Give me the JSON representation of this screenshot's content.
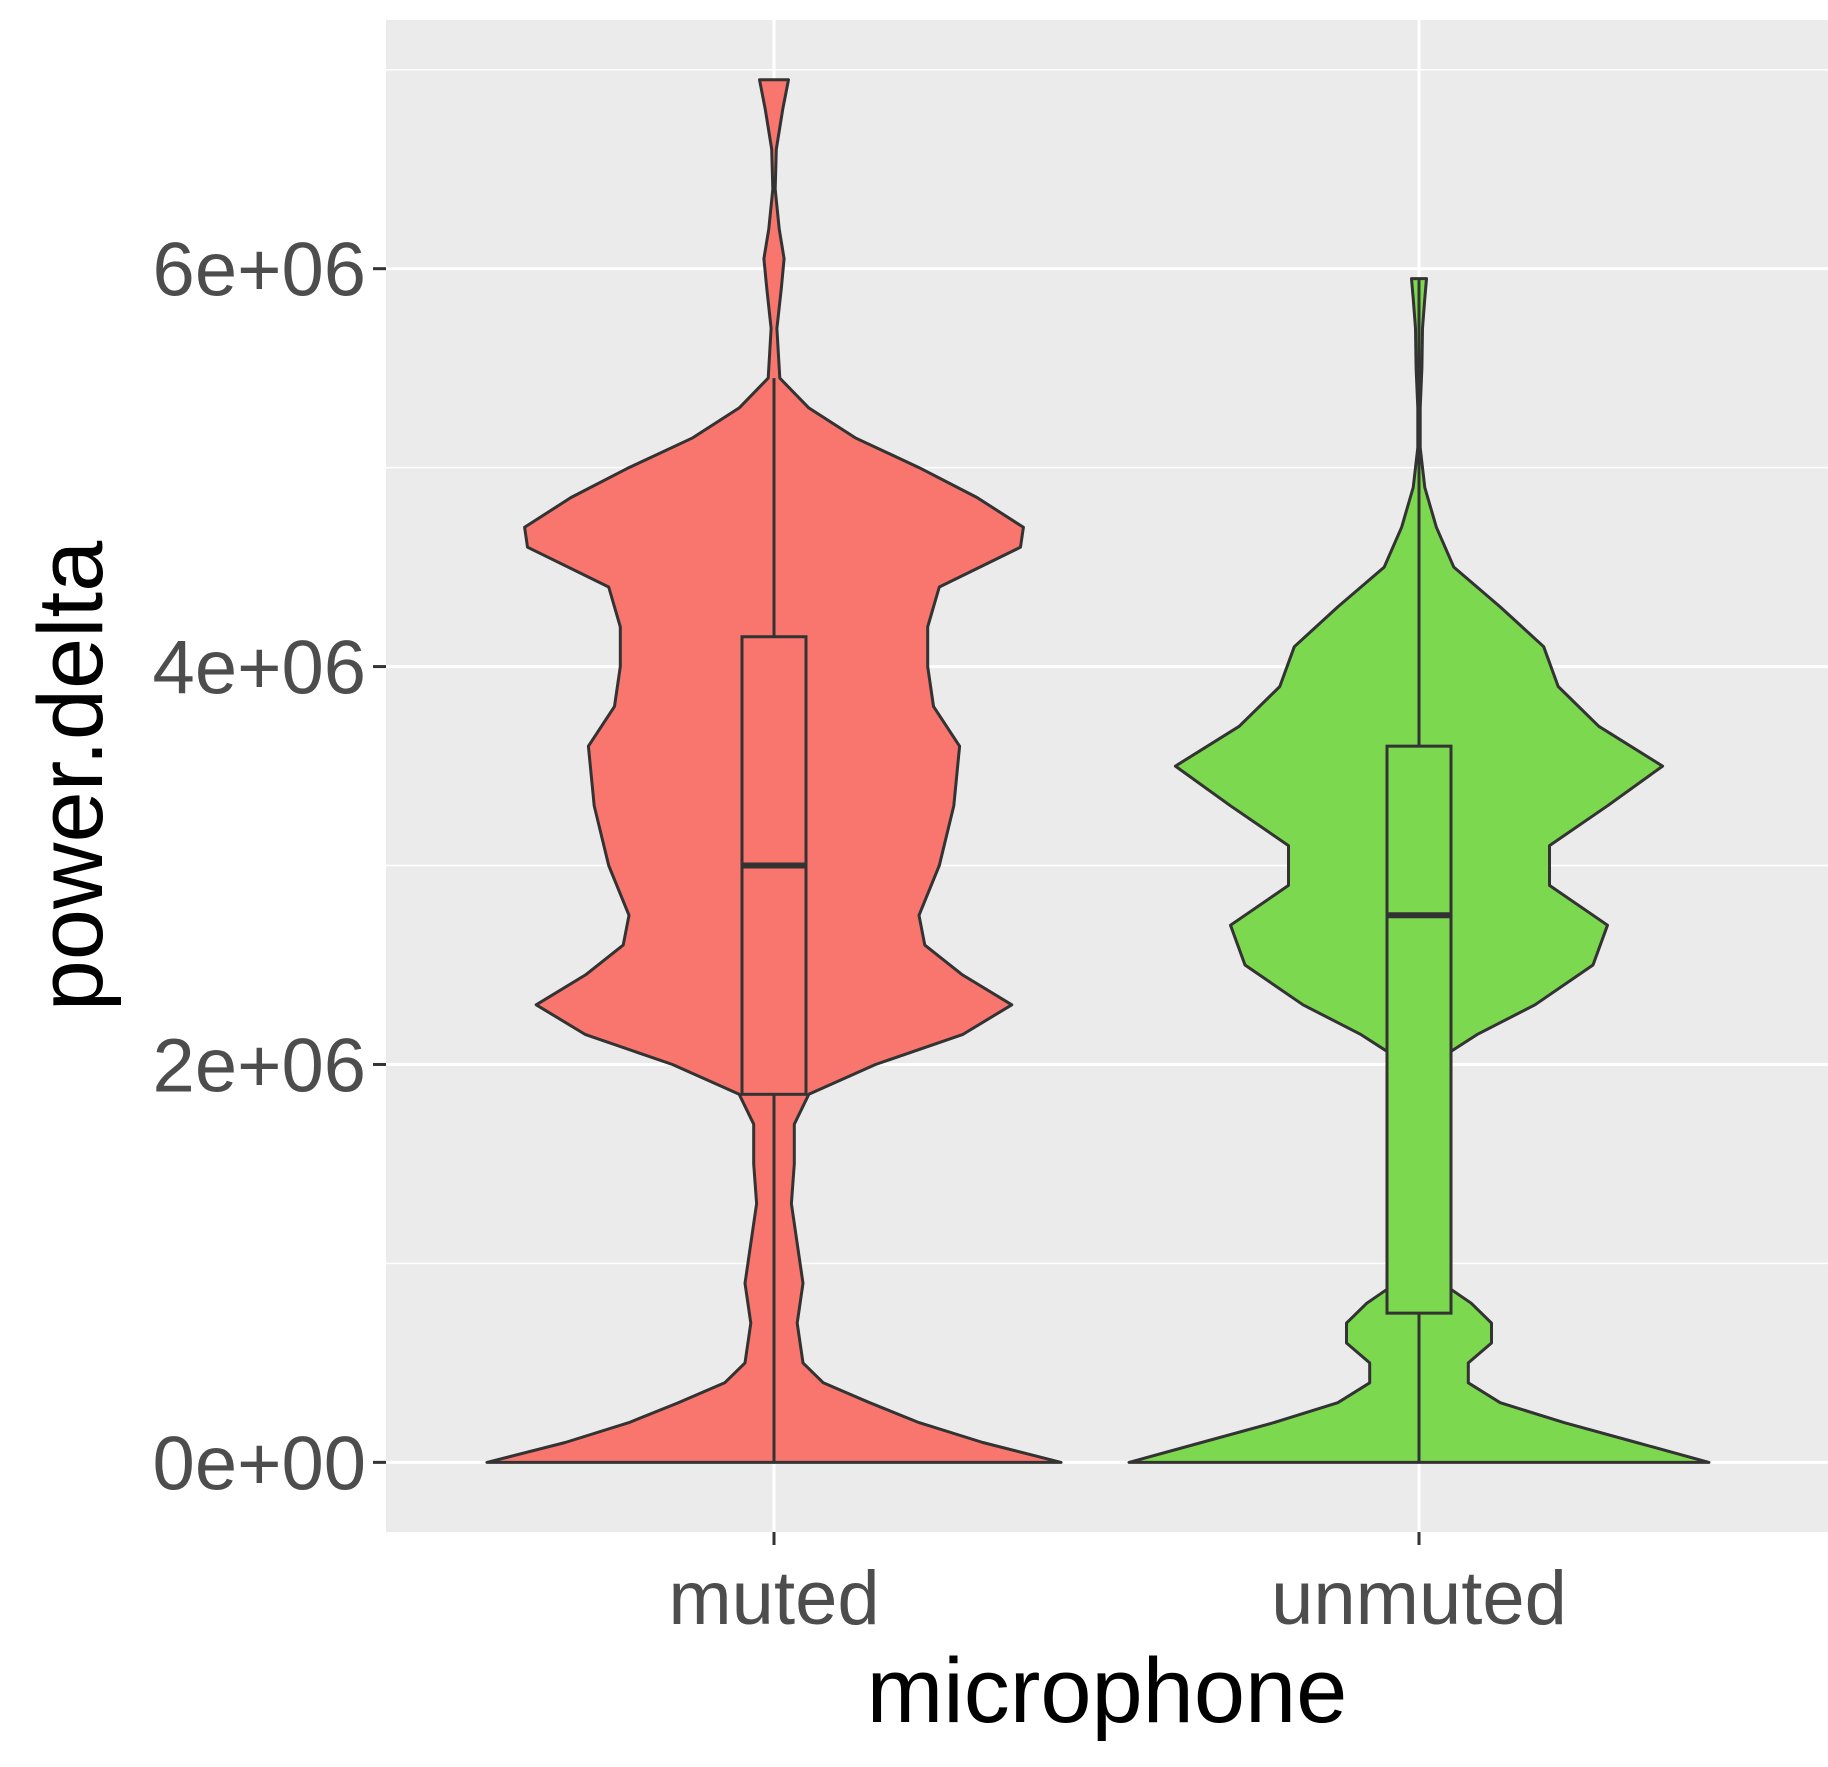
{
  "chart_data": {
    "type": "violin",
    "xlabel": "microphone",
    "ylabel": "power.delta",
    "categories": [
      "muted",
      "unmuted"
    ],
    "ylim": [
      -350000,
      7250000
    ],
    "y_ticks": [
      {
        "value": 0,
        "label": "0e+00"
      },
      {
        "value": 2000000,
        "label": "2e+06"
      },
      {
        "value": 4000000,
        "label": "4e+06"
      },
      {
        "value": 6000000,
        "label": "6e+06"
      }
    ],
    "y_minor_ticks": [
      1000000,
      3000000,
      5000000,
      7000000
    ],
    "grid": true,
    "background": "#ebebeb",
    "series": [
      {
        "name": "muted",
        "color": "#f8766d",
        "box": {
          "min": 0,
          "q1": 1850000,
          "median": 3000000,
          "q3": 4150000,
          "max": 5450000
        },
        "violin": {
          "y_min": 0,
          "y_max": 6950000,
          "density": [
            [
              0,
              0.99
            ],
            [
              100000,
              0.72
            ],
            [
              200000,
              0.5
            ],
            [
              300000,
              0.33
            ],
            [
              400000,
              0.17
            ],
            [
              500000,
              0.1
            ],
            [
              700000,
              0.08
            ],
            [
              900000,
              0.1
            ],
            [
              1100000,
              0.08
            ],
            [
              1300000,
              0.06
            ],
            [
              1500000,
              0.07
            ],
            [
              1700000,
              0.07
            ],
            [
              1850000,
              0.12
            ],
            [
              2000000,
              0.35
            ],
            [
              2150000,
              0.65
            ],
            [
              2300000,
              0.82
            ],
            [
              2450000,
              0.65
            ],
            [
              2600000,
              0.52
            ],
            [
              2750000,
              0.5
            ],
            [
              3000000,
              0.57
            ],
            [
              3300000,
              0.62
            ],
            [
              3600000,
              0.64
            ],
            [
              3800000,
              0.55
            ],
            [
              4000000,
              0.53
            ],
            [
              4200000,
              0.53
            ],
            [
              4400000,
              0.57
            ],
            [
              4600000,
              0.85
            ],
            [
              4700000,
              0.86
            ],
            [
              4850000,
              0.7
            ],
            [
              5000000,
              0.5
            ],
            [
              5150000,
              0.28
            ],
            [
              5300000,
              0.12
            ],
            [
              5450000,
              0.02
            ],
            [
              5700000,
              0.01
            ],
            [
              5900000,
              0.025
            ],
            [
              6050000,
              0.035
            ],
            [
              6200000,
              0.018
            ],
            [
              6400000,
              0.004
            ],
            [
              6600000,
              0.008
            ],
            [
              6800000,
              0.03
            ],
            [
              6950000,
              0.05
            ]
          ]
        }
      },
      {
        "name": "unmuted",
        "color": "#7cd84e",
        "box": {
          "min": 0,
          "q1": 750000,
          "median": 2750000,
          "q3": 3600000,
          "max": 5950000
        },
        "violin": {
          "y_min": 0,
          "y_max": 5950000,
          "density": [
            [
              0,
              1.0
            ],
            [
              100000,
              0.75
            ],
            [
              200000,
              0.5
            ],
            [
              300000,
              0.28
            ],
            [
              400000,
              0.17
            ],
            [
              500000,
              0.17
            ],
            [
              600000,
              0.25
            ],
            [
              700000,
              0.25
            ],
            [
              800000,
              0.18
            ],
            [
              900000,
              0.08
            ],
            [
              1050000,
              0.03
            ],
            [
              1250000,
              0.02
            ],
            [
              1450000,
              0.05
            ],
            [
              1650000,
              0.11
            ],
            [
              1850000,
              0.08
            ],
            [
              2000000,
              0.04
            ],
            [
              2150000,
              0.2
            ],
            [
              2300000,
              0.4
            ],
            [
              2500000,
              0.6
            ],
            [
              2700000,
              0.65
            ],
            [
              2900000,
              0.45
            ],
            [
              3100000,
              0.45
            ],
            [
              3300000,
              0.65
            ],
            [
              3500000,
              0.84
            ],
            [
              3700000,
              0.62
            ],
            [
              3900000,
              0.48
            ],
            [
              4100000,
              0.43
            ],
            [
              4300000,
              0.28
            ],
            [
              4500000,
              0.12
            ],
            [
              4700000,
              0.06
            ],
            [
              4900000,
              0.02
            ],
            [
              5100000,
              0.004
            ],
            [
              5300000,
              0.004
            ],
            [
              5500000,
              0.01
            ],
            [
              5700000,
              0.012
            ],
            [
              5850000,
              0.02
            ],
            [
              5950000,
              0.026
            ]
          ]
        }
      }
    ]
  }
}
